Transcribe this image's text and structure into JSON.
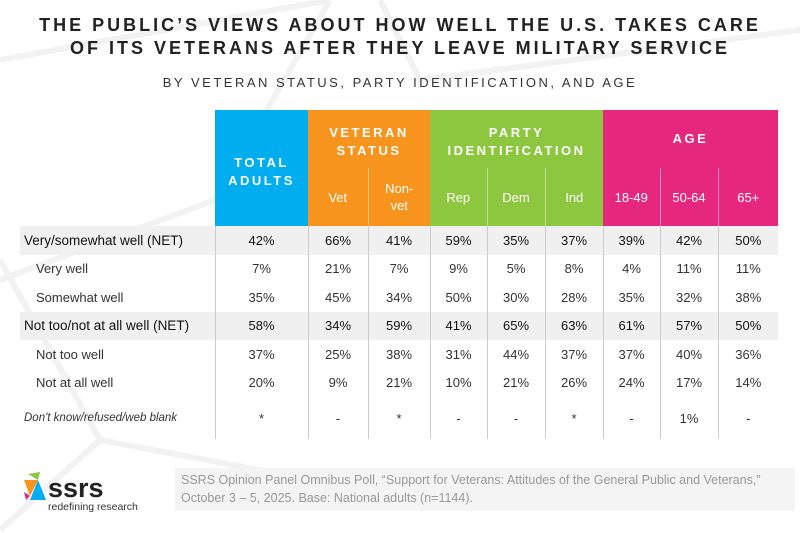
{
  "title_line1": "THE PUBLIC’S VIEWS ABOUT HOW WELL THE U.S. TAKES CARE",
  "title_line2": "OF ITS VETERANS AFTER THEY LEAVE MILITARY SERVICE",
  "subtitle": "BY VETERAN STATUS, PARTY IDENTIFICATION, AND AGE",
  "colors": {
    "total": "#00aeef",
    "veteran": "#f7941d",
    "party": "#8dc63f",
    "age": "#e5287e"
  },
  "chart_data": {
    "type": "table",
    "groups": [
      {
        "label_line1": "TOTAL",
        "label_line2": "ADULTS"
      },
      {
        "label_line1": "VETERAN",
        "label_line2": "STATUS",
        "columns": [
          "Vet",
          "Non-vet"
        ]
      },
      {
        "label_line1": "PARTY",
        "label_line2": "IDENTIFICATION",
        "columns": [
          "Rep",
          "Dem",
          "Ind"
        ]
      },
      {
        "label_line1": "AGE",
        "columns": [
          "18-49",
          "50-64",
          "65+"
        ]
      }
    ],
    "nonvet_line1": "Non-",
    "nonvet_line2": "vet",
    "rows": [
      {
        "label": "Very/somewhat well (NET)",
        "values": [
          "42%",
          "66%",
          "41%",
          "59%",
          "35%",
          "37%",
          "39%",
          "42%",
          "50%"
        ]
      },
      {
        "label": "Very well",
        "values": [
          "7%",
          "21%",
          "7%",
          "9%",
          "5%",
          "8%",
          "4%",
          "11%",
          "11%"
        ]
      },
      {
        "label": "Somewhat well",
        "values": [
          "35%",
          "45%",
          "34%",
          "50%",
          "30%",
          "28%",
          "35%",
          "32%",
          "38%"
        ]
      },
      {
        "label": "Not too/not at all well (NET)",
        "values": [
          "58%",
          "34%",
          "59%",
          "41%",
          "65%",
          "63%",
          "61%",
          "57%",
          "50%"
        ]
      },
      {
        "label": "Not too well",
        "values": [
          "37%",
          "25%",
          "38%",
          "31%",
          "44%",
          "37%",
          "37%",
          "40%",
          "36%"
        ]
      },
      {
        "label": "Not at all well",
        "values": [
          "20%",
          "9%",
          "21%",
          "10%",
          "21%",
          "26%",
          "24%",
          "17%",
          "14%"
        ]
      },
      {
        "label": "Don't know/refused/web blank",
        "values": [
          "*",
          "-",
          "*",
          "-",
          "-",
          "*",
          "-",
          "1%",
          "-"
        ]
      }
    ]
  },
  "footer": {
    "logo_text": "ssrs",
    "logo_tagline": "redefining research",
    "note_line1": "SSRS Opinion Panel Omnibus Poll, “Support for Veterans: Attitudes of the General Public and Veterans,”",
    "note_line2": "October 3 – 5, 2025. Base: National adults (n=1144)."
  }
}
